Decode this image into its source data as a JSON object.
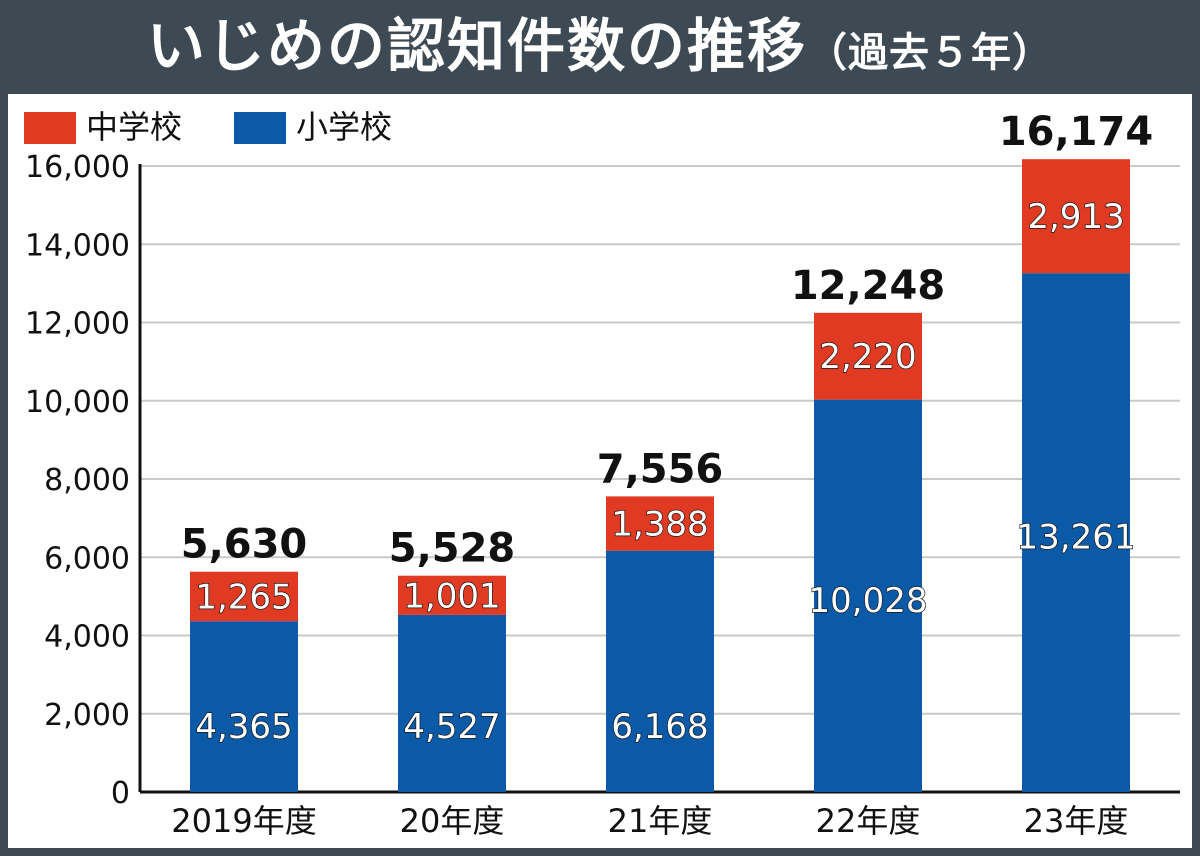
{
  "title": {
    "main": "いじめの認知件数の推移",
    "sub": "（過去５年）"
  },
  "colors": {
    "frame": "#3e4a53",
    "middle_school": "#e03a22",
    "elementary_school": "#0b5aa8",
    "grid": "#c9c9c9"
  },
  "legend": [
    {
      "label": "中学校",
      "color": "#e03a22"
    },
    {
      "label": "小学校",
      "color": "#0b5aa8"
    }
  ],
  "chart_data": {
    "type": "bar",
    "stacked": true,
    "categories": [
      "2019年度",
      "20年度",
      "21年度",
      "22年度",
      "23年度"
    ],
    "series": [
      {
        "name": "小学校",
        "values": [
          4365,
          4527,
          6168,
          10028,
          13261
        ]
      },
      {
        "name": "中学校",
        "values": [
          1265,
          1001,
          1388,
          2220,
          2913
        ]
      }
    ],
    "value_labels": {
      "小学校": [
        "4,365",
        "4,527",
        "6,168",
        "10,028",
        "13,261"
      ],
      "中学校": [
        "1,265",
        "1,001",
        "1,388",
        "2,220",
        "2,913"
      ]
    },
    "totals": [
      5630,
      5528,
      7556,
      12248,
      16174
    ],
    "total_labels": [
      "5,630",
      "5,528",
      "7,556",
      "12,248",
      "16,174"
    ],
    "ylim": [
      0,
      16000
    ],
    "yticks": [
      0,
      2000,
      4000,
      6000,
      8000,
      10000,
      12000,
      14000,
      16000
    ],
    "ytick_labels": [
      "0",
      "2,000",
      "4,000",
      "6,000",
      "8,000",
      "10,000",
      "12,000",
      "14,000",
      "16,000"
    ],
    "grid": true,
    "legend_position": "top-left"
  }
}
